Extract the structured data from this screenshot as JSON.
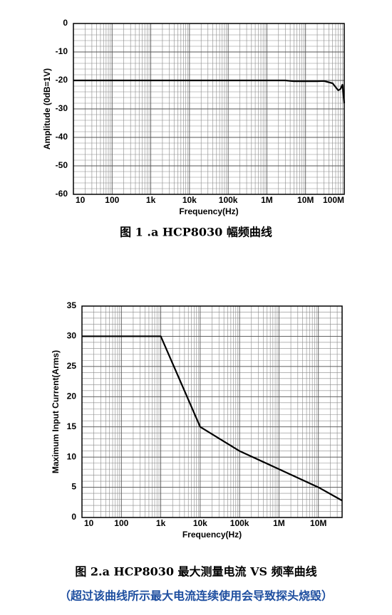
{
  "chart_data": [
    {
      "type": "line",
      "title": "图 1 .a HCP8030 幅频曲线",
      "x_label": "Frequency(Hz)",
      "y_label": "Amplitude (0dB=1V)",
      "xscale": "log",
      "grid": true,
      "xlim": [
        10,
        100000000
      ],
      "xticks": [
        10,
        100,
        {
          "value": 1000,
          "label": "1k"
        },
        {
          "value": 10000,
          "label": "10k"
        },
        {
          "value": 100000,
          "label": "100k"
        },
        {
          "value": 1000000,
          "label": "1M"
        },
        {
          "value": 10000000,
          "label": "10M"
        },
        {
          "value": 100000000,
          "label": "100M"
        }
      ],
      "ylim": [
        -60,
        0
      ],
      "yticks": [
        0,
        -10,
        -20,
        -30,
        -40,
        -50,
        -60
      ],
      "series": [
        {
          "color": "#000000",
          "x": [
            10,
            1000000,
            3000000,
            5000000,
            20000000,
            30000000,
            50000000,
            70000000,
            80000000,
            90000000,
            100000000
          ],
          "values": [
            -20,
            -20,
            -20,
            -20.3,
            -20.3,
            -20.2,
            -21,
            -23.5,
            -23,
            -21.5,
            -28
          ]
        }
      ]
    },
    {
      "type": "line",
      "title": "图 2.a HCP8030 最大测量电流 VS 频率曲线",
      "subtitle": "（超过该曲线所示最大电流连续使用会导致探头烧毁）",
      "x_label": "Frequency(Hz)",
      "y_label": "Maximum Input Current(Arms)",
      "xscale": "log",
      "grid": true,
      "xlim": [
        10,
        40000000
      ],
      "xticks": [
        10,
        100,
        {
          "value": 1000,
          "label": "1k"
        },
        {
          "value": 10000,
          "label": "10k"
        },
        {
          "value": 100000,
          "label": "100k"
        },
        {
          "value": 1000000,
          "label": "1M"
        },
        {
          "value": 10000000,
          "label": "10M"
        }
      ],
      "ylim": [
        0,
        35
      ],
      "yticks": [
        0,
        5,
        10,
        15,
        20,
        25,
        30,
        35
      ],
      "series": [
        {
          "color": "#000000",
          "x": [
            10,
            1000,
            10000,
            100000,
            1000000,
            10000000,
            40000000
          ],
          "values": [
            30,
            30,
            15,
            11,
            8,
            5,
            2.8
          ]
        }
      ]
    }
  ]
}
